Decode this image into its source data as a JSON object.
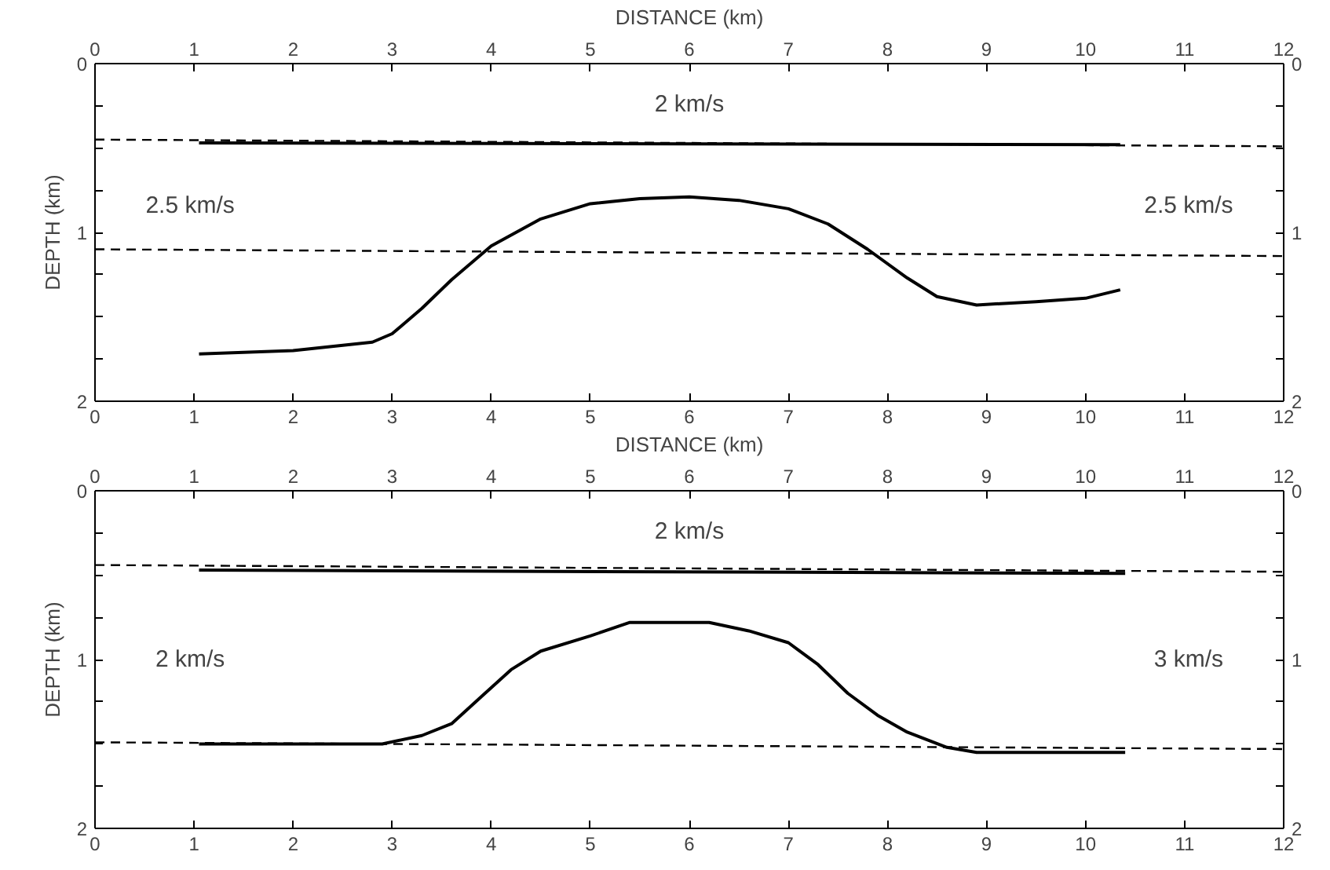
{
  "chart_data": [
    {
      "type": "line",
      "x2label": "DISTANCE (km)",
      "ylabel": "DEPTH (km)",
      "xlim": [
        0,
        12
      ],
      "xticks": [
        0,
        1,
        2,
        3,
        4,
        5,
        6,
        7,
        8,
        9,
        10,
        11,
        12
      ],
      "x2lim": [
        0,
        12
      ],
      "x2ticks": [
        0,
        1,
        2,
        3,
        4,
        5,
        6,
        7,
        8,
        9,
        10,
        11,
        12
      ],
      "ylim": [
        2,
        0
      ],
      "yticks": [
        0,
        {
          "value": 0.25,
          "label": null
        },
        {
          "value": 0.5,
          "label": null
        },
        {
          "value": 0.75,
          "label": null
        },
        1,
        {
          "value": 1.25,
          "label": null
        },
        {
          "value": 1.5,
          "label": null
        },
        {
          "value": 1.75,
          "label": null
        },
        2
      ],
      "y2lim": [
        2,
        0
      ],
      "y2ticks": [
        0,
        {
          "value": 0.25,
          "label": null
        },
        {
          "value": 0.5,
          "label": null
        },
        {
          "value": 0.75,
          "label": null
        },
        1,
        {
          "value": 1.25,
          "label": null
        },
        {
          "value": 1.5,
          "label": null
        },
        {
          "value": 1.75,
          "label": null
        },
        2
      ],
      "grid": false,
      "series": [
        {
          "color": "#000000",
          "line_style": "dashed",
          "x": [
            0,
            12
          ],
          "values": [
            0.45,
            0.49
          ]
        },
        {
          "color": "#000000",
          "line_style": "dashed",
          "x": [
            0,
            12
          ],
          "values": [
            1.1,
            1.14
          ]
        },
        {
          "color": "#000000",
          "line_style": "solid",
          "x": [
            1.05,
            10.35
          ],
          "values": [
            0.47,
            0.48
          ]
        },
        {
          "color": "#000000",
          "line_style": "solid",
          "x": [
            1.05,
            2.0,
            2.8,
            3.0,
            3.3,
            3.6,
            4.0,
            4.5,
            5.0,
            5.5,
            6.0,
            6.5,
            7.0,
            7.4,
            7.8,
            8.2,
            8.5,
            8.9,
            9.5,
            10.0,
            10.35
          ],
          "values": [
            1.72,
            1.7,
            1.65,
            1.6,
            1.45,
            1.28,
            1.08,
            0.92,
            0.83,
            0.8,
            0.79,
            0.81,
            0.86,
            0.95,
            1.1,
            1.27,
            1.38,
            1.43,
            1.41,
            1.39,
            1.34
          ]
        }
      ],
      "annotations": [
        "2 km/s",
        "2.5 km/s",
        "2.5 km/s"
      ]
    },
    {
      "type": "line",
      "x2label": "DISTANCE (km)",
      "ylabel": "DEPTH (km)",
      "xlim": [
        0,
        12
      ],
      "xticks": [
        0,
        1,
        2,
        3,
        4,
        5,
        6,
        7,
        8,
        9,
        10,
        11,
        12
      ],
      "x2lim": [
        0,
        12
      ],
      "x2ticks": [
        0,
        1,
        2,
        3,
        4,
        5,
        6,
        7,
        8,
        9,
        10,
        11,
        12
      ],
      "ylim": [
        2,
        0
      ],
      "yticks": [
        0,
        {
          "value": 0.25,
          "label": null
        },
        {
          "value": 0.5,
          "label": null
        },
        {
          "value": 0.75,
          "label": null
        },
        1,
        {
          "value": 1.25,
          "label": null
        },
        {
          "value": 1.5,
          "label": null
        },
        {
          "value": 1.75,
          "label": null
        },
        2
      ],
      "y2lim": [
        2,
        0
      ],
      "y2ticks": [
        0,
        {
          "value": 0.25,
          "label": null
        },
        {
          "value": 0.5,
          "label": null
        },
        {
          "value": 0.75,
          "label": null
        },
        1,
        {
          "value": 1.25,
          "label": null
        },
        {
          "value": 1.5,
          "label": null
        },
        {
          "value": 1.75,
          "label": null
        },
        2
      ],
      "grid": false,
      "series": [
        {
          "color": "#000000",
          "line_style": "dashed",
          "x": [
            0,
            12
          ],
          "values": [
            0.44,
            0.48
          ]
        },
        {
          "color": "#000000",
          "line_style": "dashed",
          "x": [
            0,
            12
          ],
          "values": [
            1.49,
            1.53
          ]
        },
        {
          "color": "#000000",
          "line_style": "solid",
          "x": [
            1.05,
            10.4
          ],
          "values": [
            0.47,
            0.49
          ]
        },
        {
          "color": "#000000",
          "line_style": "solid",
          "x": [
            1.05,
            2.9,
            3.3,
            3.6,
            3.9,
            4.2,
            4.5,
            5.0,
            5.4,
            6.2,
            6.6,
            7.0,
            7.3,
            7.6,
            7.9,
            8.2,
            8.6,
            8.9,
            10.4
          ],
          "values": [
            1.5,
            1.5,
            1.45,
            1.38,
            1.22,
            1.06,
            0.95,
            0.86,
            0.78,
            0.78,
            0.83,
            0.9,
            1.03,
            1.2,
            1.33,
            1.43,
            1.52,
            1.55,
            1.55
          ]
        }
      ],
      "annotations": [
        "2 km/s",
        "2 km/s",
        "3 km/s"
      ]
    }
  ]
}
